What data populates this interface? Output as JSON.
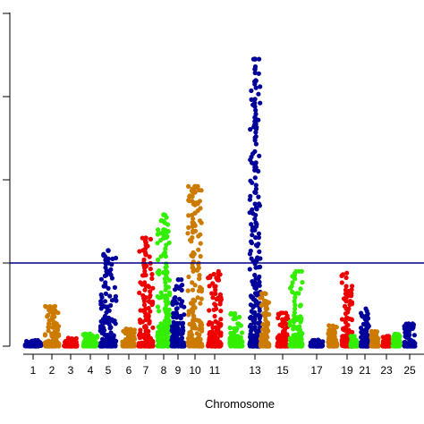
{
  "chart_data": {
    "type": "scatter",
    "xlabel": "Chromosome",
    "ylabel": "",
    "x_tick_labels": [
      "1",
      "2",
      "3",
      "4",
      "5",
      "6",
      "7",
      "8",
      "9",
      "10",
      "11",
      "13",
      "15",
      "17",
      "19",
      "21",
      "23",
      "25"
    ],
    "x_tick_chromosomes": [
      1,
      2,
      3,
      4,
      5,
      6,
      7,
      8,
      9,
      10,
      11,
      13,
      15,
      17,
      19,
      21,
      23,
      25
    ],
    "chromosome_centers": {
      "1": 37,
      "2": 58,
      "3": 79,
      "4": 101,
      "5": 121,
      "6": 144,
      "7": 163,
      "8": 183,
      "9": 199,
      "10": 218,
      "11": 240,
      "12": 264,
      "13": 285,
      "14": 296,
      "15": 316,
      "16": 331,
      "17": 354,
      "18": 372,
      "19": 388,
      "20": 396,
      "21": 408,
      "22": 419,
      "23": 432,
      "24": 443,
      "25": 458
    },
    "chromosome_widths": {
      "1": 18,
      "2": 16,
      "3": 15,
      "4": 16,
      "5": 18,
      "6": 14,
      "7": 16,
      "8": 14,
      "9": 14,
      "10": 16,
      "11": 15,
      "12": 14,
      "13": 12,
      "14": 10,
      "15": 12,
      "16": 14,
      "17": 14,
      "18": 10,
      "19": 12,
      "20": 8,
      "21": 9,
      "22": 8,
      "23": 8,
      "24": 8,
      "25": 12
    },
    "palette": [
      "#00009b",
      "#cc7a00",
      "#ee0000",
      "#33ee00"
    ],
    "chromosome_colors": {
      "1": "#00009b",
      "2": "#cc7a00",
      "3": "#ee0000",
      "4": "#33ee00",
      "5": "#00009b",
      "6": "#cc7a00",
      "7": "#ee0000",
      "8": "#33ee00",
      "9": "#00009b",
      "10": "#cc7a00",
      "11": "#ee0000",
      "12": "#33ee00",
      "13": "#00009b",
      "14": "#cc7a00",
      "15": "#ee0000",
      "16": "#33ee00",
      "17": "#00009b",
      "18": "#cc7a00",
      "19": "#ee0000",
      "20": "#33ee00",
      "21": "#00009b",
      "22": "#cc7a00",
      "23": "#ee0000",
      "24": "#33ee00",
      "25": "#00009b"
    },
    "threshold": 1.0,
    "threshold_color": "#00008b",
    "ylim": [
      0,
      4.2
    ],
    "y_major_ticks": [
      0,
      1,
      2,
      3,
      4
    ],
    "peaks": {
      "1": 0.07,
      "2": 0.48,
      "3": 0.1,
      "4": 0.15,
      "5": 1.15,
      "6": 0.22,
      "7": 1.3,
      "8": 1.58,
      "9": 0.8,
      "10": 1.92,
      "11": 0.9,
      "12": 0.4,
      "13": 3.45,
      "14": 0.65,
      "15": 0.4,
      "16": 0.9,
      "17": 0.08,
      "18": 0.25,
      "19": 0.88,
      "20": 0.12,
      "21": 0.45,
      "22": 0.18,
      "23": 0.12,
      "24": 0.15,
      "25": 0.28
    },
    "top_hits": [
      {
        "chromosome": 13,
        "y": 3.45
      },
      {
        "chromosome": 13,
        "y": 3.33
      },
      {
        "chromosome": 13,
        "y": 2.75
      },
      {
        "chromosome": 13,
        "y": 2.7
      },
      {
        "chromosome": 13,
        "y": 2.65
      },
      {
        "chromosome": 13,
        "y": 2.18
      },
      {
        "chromosome": 13,
        "y": 2.15
      },
      {
        "chromosome": 13,
        "y": 1.85
      },
      {
        "chromosome": 10,
        "y": 1.92
      },
      {
        "chromosome": 10,
        "y": 1.85
      },
      {
        "chromosome": 10,
        "y": 1.7
      },
      {
        "chromosome": 10,
        "y": 1.6
      },
      {
        "chromosome": 10,
        "y": 1.45
      },
      {
        "chromosome": 8,
        "y": 1.58
      },
      {
        "chromosome": 8,
        "y": 1.5
      },
      {
        "chromosome": 8,
        "y": 1.4
      },
      {
        "chromosome": 8,
        "y": 1.3
      },
      {
        "chromosome": 8,
        "y": 1.1
      },
      {
        "chromosome": 7,
        "y": 1.3
      },
      {
        "chromosome": 7,
        "y": 1.25
      },
      {
        "chromosome": 7,
        "y": 1.1
      },
      {
        "chromosome": 5,
        "y": 1.15
      },
      {
        "chromosome": 5,
        "y": 1.05
      },
      {
        "chromosome": 5,
        "y": 1.0
      }
    ]
  }
}
